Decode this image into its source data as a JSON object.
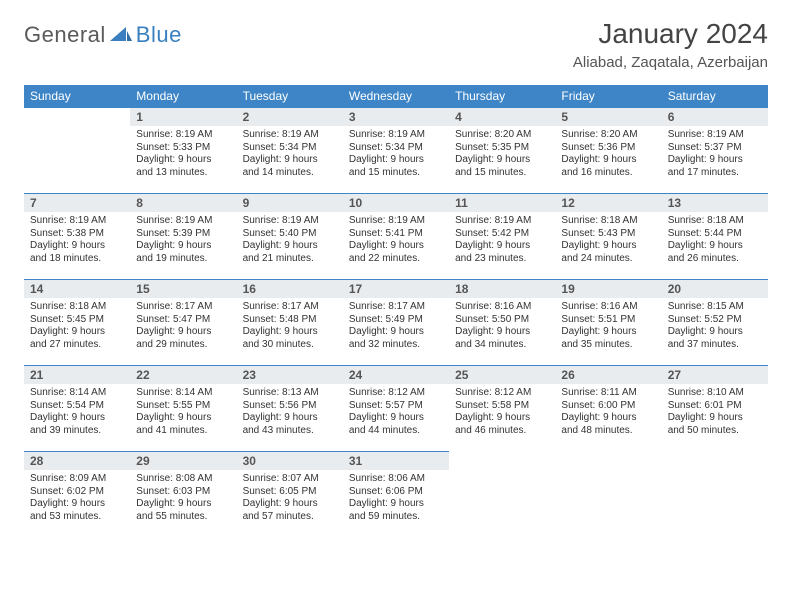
{
  "logo": {
    "part1": "General",
    "part2": "Blue"
  },
  "title": "January 2024",
  "location": "Aliabad, Zaqatala, Azerbaijan",
  "colors": {
    "header_bg": "#3d85c6",
    "header_text": "#ffffff",
    "daynum_bg": "#e9ecef",
    "border": "#3d85c6",
    "logo_gray": "#5a5a5a",
    "logo_blue": "#3a7fbf"
  },
  "fonts": {
    "title_size": 28,
    "location_size": 15,
    "header_size": 12,
    "daynum_size": 12,
    "body_size": 10
  },
  "weekdays": [
    "Sunday",
    "Monday",
    "Tuesday",
    "Wednesday",
    "Thursday",
    "Friday",
    "Saturday"
  ],
  "start_weekday_index": 1,
  "days": [
    {
      "n": 1,
      "sunrise": "8:19 AM",
      "sunset": "5:33 PM",
      "daylight": "9 hours and 13 minutes."
    },
    {
      "n": 2,
      "sunrise": "8:19 AM",
      "sunset": "5:34 PM",
      "daylight": "9 hours and 14 minutes."
    },
    {
      "n": 3,
      "sunrise": "8:19 AM",
      "sunset": "5:34 PM",
      "daylight": "9 hours and 15 minutes."
    },
    {
      "n": 4,
      "sunrise": "8:20 AM",
      "sunset": "5:35 PM",
      "daylight": "9 hours and 15 minutes."
    },
    {
      "n": 5,
      "sunrise": "8:20 AM",
      "sunset": "5:36 PM",
      "daylight": "9 hours and 16 minutes."
    },
    {
      "n": 6,
      "sunrise": "8:19 AM",
      "sunset": "5:37 PM",
      "daylight": "9 hours and 17 minutes."
    },
    {
      "n": 7,
      "sunrise": "8:19 AM",
      "sunset": "5:38 PM",
      "daylight": "9 hours and 18 minutes."
    },
    {
      "n": 8,
      "sunrise": "8:19 AM",
      "sunset": "5:39 PM",
      "daylight": "9 hours and 19 minutes."
    },
    {
      "n": 9,
      "sunrise": "8:19 AM",
      "sunset": "5:40 PM",
      "daylight": "9 hours and 21 minutes."
    },
    {
      "n": 10,
      "sunrise": "8:19 AM",
      "sunset": "5:41 PM",
      "daylight": "9 hours and 22 minutes."
    },
    {
      "n": 11,
      "sunrise": "8:19 AM",
      "sunset": "5:42 PM",
      "daylight": "9 hours and 23 minutes."
    },
    {
      "n": 12,
      "sunrise": "8:18 AM",
      "sunset": "5:43 PM",
      "daylight": "9 hours and 24 minutes."
    },
    {
      "n": 13,
      "sunrise": "8:18 AM",
      "sunset": "5:44 PM",
      "daylight": "9 hours and 26 minutes."
    },
    {
      "n": 14,
      "sunrise": "8:18 AM",
      "sunset": "5:45 PM",
      "daylight": "9 hours and 27 minutes."
    },
    {
      "n": 15,
      "sunrise": "8:17 AM",
      "sunset": "5:47 PM",
      "daylight": "9 hours and 29 minutes."
    },
    {
      "n": 16,
      "sunrise": "8:17 AM",
      "sunset": "5:48 PM",
      "daylight": "9 hours and 30 minutes."
    },
    {
      "n": 17,
      "sunrise": "8:17 AM",
      "sunset": "5:49 PM",
      "daylight": "9 hours and 32 minutes."
    },
    {
      "n": 18,
      "sunrise": "8:16 AM",
      "sunset": "5:50 PM",
      "daylight": "9 hours and 34 minutes."
    },
    {
      "n": 19,
      "sunrise": "8:16 AM",
      "sunset": "5:51 PM",
      "daylight": "9 hours and 35 minutes."
    },
    {
      "n": 20,
      "sunrise": "8:15 AM",
      "sunset": "5:52 PM",
      "daylight": "9 hours and 37 minutes."
    },
    {
      "n": 21,
      "sunrise": "8:14 AM",
      "sunset": "5:54 PM",
      "daylight": "9 hours and 39 minutes."
    },
    {
      "n": 22,
      "sunrise": "8:14 AM",
      "sunset": "5:55 PM",
      "daylight": "9 hours and 41 minutes."
    },
    {
      "n": 23,
      "sunrise": "8:13 AM",
      "sunset": "5:56 PM",
      "daylight": "9 hours and 43 minutes."
    },
    {
      "n": 24,
      "sunrise": "8:12 AM",
      "sunset": "5:57 PM",
      "daylight": "9 hours and 44 minutes."
    },
    {
      "n": 25,
      "sunrise": "8:12 AM",
      "sunset": "5:58 PM",
      "daylight": "9 hours and 46 minutes."
    },
    {
      "n": 26,
      "sunrise": "8:11 AM",
      "sunset": "6:00 PM",
      "daylight": "9 hours and 48 minutes."
    },
    {
      "n": 27,
      "sunrise": "8:10 AM",
      "sunset": "6:01 PM",
      "daylight": "9 hours and 50 minutes."
    },
    {
      "n": 28,
      "sunrise": "8:09 AM",
      "sunset": "6:02 PM",
      "daylight": "9 hours and 53 minutes."
    },
    {
      "n": 29,
      "sunrise": "8:08 AM",
      "sunset": "6:03 PM",
      "daylight": "9 hours and 55 minutes."
    },
    {
      "n": 30,
      "sunrise": "8:07 AM",
      "sunset": "6:05 PM",
      "daylight": "9 hours and 57 minutes."
    },
    {
      "n": 31,
      "sunrise": "8:06 AM",
      "sunset": "6:06 PM",
      "daylight": "9 hours and 59 minutes."
    }
  ],
  "labels": {
    "sunrise": "Sunrise:",
    "sunset": "Sunset:",
    "daylight": "Daylight:"
  }
}
